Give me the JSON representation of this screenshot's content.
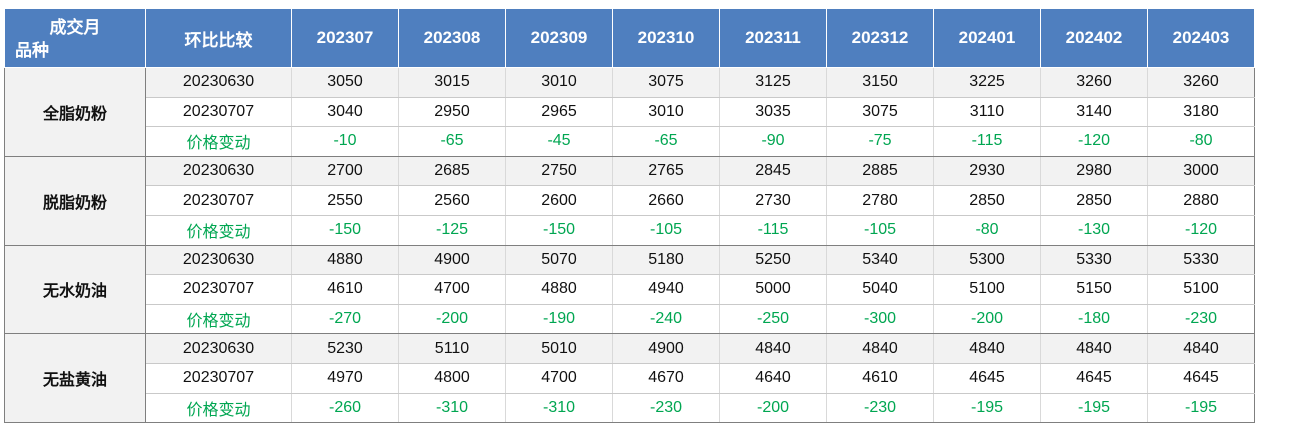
{
  "header": {
    "corner_top": "成交月",
    "corner_bottom": "品种",
    "compare": "环比比较",
    "months": [
      "202307",
      "202308",
      "202309",
      "202310",
      "202311",
      "202312",
      "202401",
      "202402",
      "202403"
    ]
  },
  "products": [
    {
      "name": "全脂奶粉",
      "rows": [
        {
          "label": "20230630",
          "values": [
            "3050",
            "3015",
            "3010",
            "3075",
            "3125",
            "3150",
            "3225",
            "3260",
            "3260"
          ]
        },
        {
          "label": "20230707",
          "values": [
            "3040",
            "2950",
            "2965",
            "3010",
            "3035",
            "3075",
            "3110",
            "3140",
            "3180"
          ]
        },
        {
          "label": "价格变动",
          "values": [
            "-10",
            "-65",
            "-45",
            "-65",
            "-90",
            "-75",
            "-115",
            "-120",
            "-80"
          ]
        }
      ]
    },
    {
      "name": "脱脂奶粉",
      "rows": [
        {
          "label": "20230630",
          "values": [
            "2700",
            "2685",
            "2750",
            "2765",
            "2845",
            "2885",
            "2930",
            "2980",
            "3000"
          ]
        },
        {
          "label": "20230707",
          "values": [
            "2550",
            "2560",
            "2600",
            "2660",
            "2730",
            "2780",
            "2850",
            "2850",
            "2880"
          ]
        },
        {
          "label": "价格变动",
          "values": [
            "-150",
            "-125",
            "-150",
            "-105",
            "-115",
            "-105",
            "-80",
            "-130",
            "-120"
          ]
        }
      ]
    },
    {
      "name": "无水奶油",
      "rows": [
        {
          "label": "20230630",
          "values": [
            "4880",
            "4900",
            "5070",
            "5180",
            "5250",
            "5340",
            "5300",
            "5330",
            "5330"
          ]
        },
        {
          "label": "20230707",
          "values": [
            "4610",
            "4700",
            "4880",
            "4940",
            "5000",
            "5040",
            "5100",
            "5150",
            "5100"
          ]
        },
        {
          "label": "价格变动",
          "values": [
            "-270",
            "-200",
            "-190",
            "-240",
            "-250",
            "-300",
            "-200",
            "-180",
            "-230"
          ]
        }
      ]
    },
    {
      "name": "无盐黄油",
      "rows": [
        {
          "label": "20230630",
          "values": [
            "5230",
            "5110",
            "5010",
            "4900",
            "4840",
            "4840",
            "4840",
            "4840",
            "4840"
          ]
        },
        {
          "label": "20230707",
          "values": [
            "4970",
            "4800",
            "4700",
            "4670",
            "4640",
            "4610",
            "4645",
            "4645",
            "4645"
          ]
        },
        {
          "label": "价格变动",
          "values": [
            "-260",
            "-310",
            "-310",
            "-230",
            "-200",
            "-230",
            "-195",
            "-195",
            "-195"
          ]
        }
      ]
    }
  ]
}
